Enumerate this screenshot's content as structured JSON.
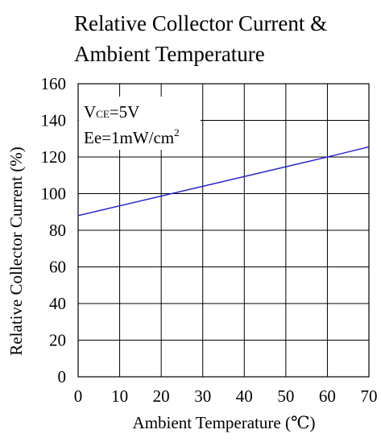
{
  "chart_data": {
    "type": "line",
    "title_line1": "Relative Collector Current &",
    "title_line2": "Ambient Temperature",
    "xlabel": "Ambient Temperature (℃)",
    "ylabel": "Relative Collector  Current (%)",
    "xlim": [
      0,
      70
    ],
    "ylim": [
      0,
      160
    ],
    "xticks": [
      "0",
      "10",
      "20",
      "30",
      "40",
      "50",
      "60",
      "70"
    ],
    "yticks": [
      "0",
      "20",
      "40",
      "60",
      "80",
      "100",
      "120",
      "140",
      "160"
    ],
    "annotation": {
      "vce_main": "V",
      "vce_sub": "CE",
      "vce_value": "=5V",
      "ee_main": "Ee=1mW/cm",
      "ee_sup": "2"
    },
    "series": [
      {
        "color": "#1f1fd0",
        "x": [
          0,
          60,
          70
        ],
        "y": [
          88,
          120,
          125.5
        ]
      }
    ],
    "grid": true
  }
}
